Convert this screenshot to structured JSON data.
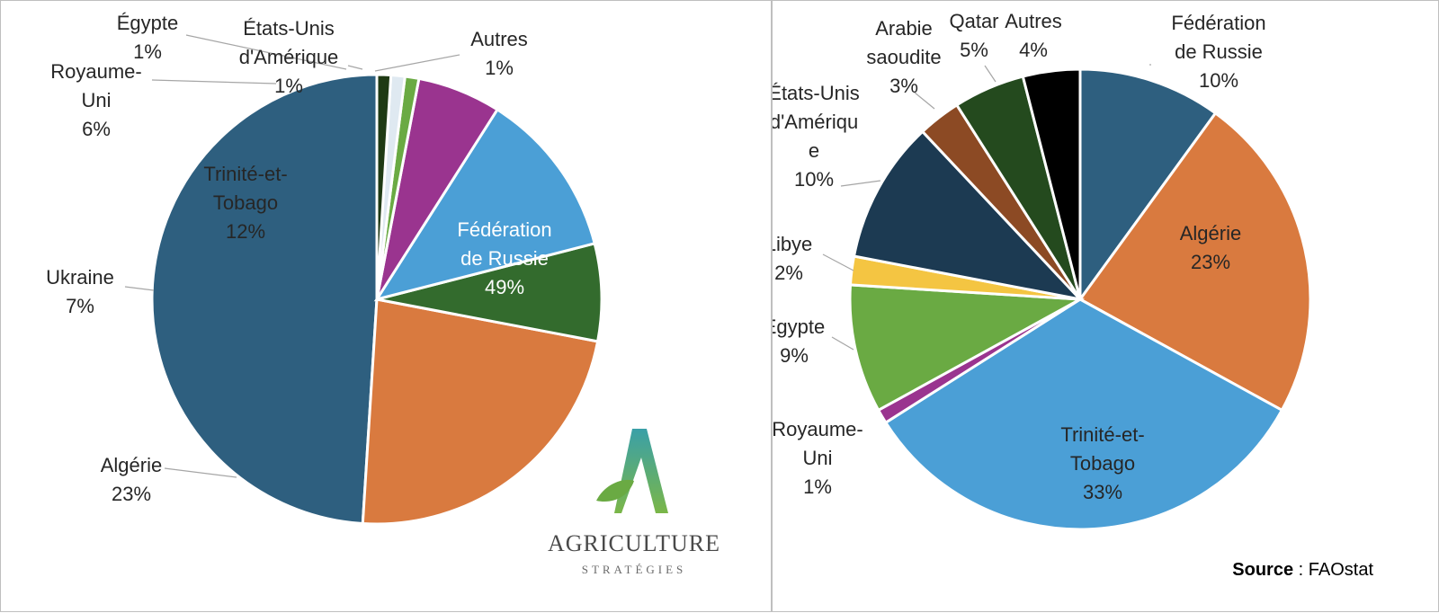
{
  "chart_data": [
    {
      "type": "pie",
      "title": "",
      "slices": [
        {
          "label": "Fédération de Russie",
          "value": 49,
          "display": "49%",
          "color": "#2e5f7f"
        },
        {
          "label": "Algérie",
          "value": 23,
          "display": "23%",
          "color": "#d97a3f"
        },
        {
          "label": "Ukraine",
          "value": 7,
          "display": "7%",
          "color": "#336b2d"
        },
        {
          "label": "Trinité-et-Tobago",
          "value": 12,
          "display": "12%",
          "color": "#4b9fd6"
        },
        {
          "label": "Royaume-Uni",
          "value": 6,
          "display": "6%",
          "color": "#9a348f"
        },
        {
          "label": "Égypte",
          "value": 1,
          "display": "1%",
          "color": "#6aaa43"
        },
        {
          "label": "États-Unis d'Amérique",
          "value": 1,
          "display": "1%",
          "color": "#dfe9f1"
        },
        {
          "label": "Autres",
          "value": 1,
          "display": "1%",
          "color": "#1f3a14"
        }
      ]
    },
    {
      "type": "pie",
      "title": "",
      "slices": [
        {
          "label": "Fédération de Russie",
          "value": 10,
          "display": "10%",
          "color": "#2e5f7f"
        },
        {
          "label": "Algérie",
          "value": 23,
          "display": "23%",
          "color": "#d97a3f"
        },
        {
          "label": "Trinité-et-Tobago",
          "value": 33,
          "display": "33%",
          "color": "#4b9fd6"
        },
        {
          "label": "Royaume-Uni",
          "value": 1,
          "display": "1%",
          "color": "#9a348f"
        },
        {
          "label": "Égypte",
          "value": 9,
          "display": "9%",
          "color": "#6aaa43"
        },
        {
          "label": "Libye",
          "value": 2,
          "display": "2%",
          "color": "#f4c542"
        },
        {
          "label": "États-Unis d'Amérique",
          "value": 10,
          "display": "10%",
          "color": "#1c3a52"
        },
        {
          "label": "Arabie saoudite",
          "value": 3,
          "display": "3%",
          "color": "#8c4a24"
        },
        {
          "label": "Qatar",
          "value": 5,
          "display": "5%",
          "color": "#244a1e"
        },
        {
          "label": "Autres",
          "value": 4,
          "display": "4%",
          "color": "#000000"
        }
      ]
    }
  ],
  "logo": {
    "name": "AGRICULTURE",
    "tagline": "STRATÉGIES"
  },
  "source": {
    "label": "Source",
    "separator": " : ",
    "value": "FAOstat"
  }
}
